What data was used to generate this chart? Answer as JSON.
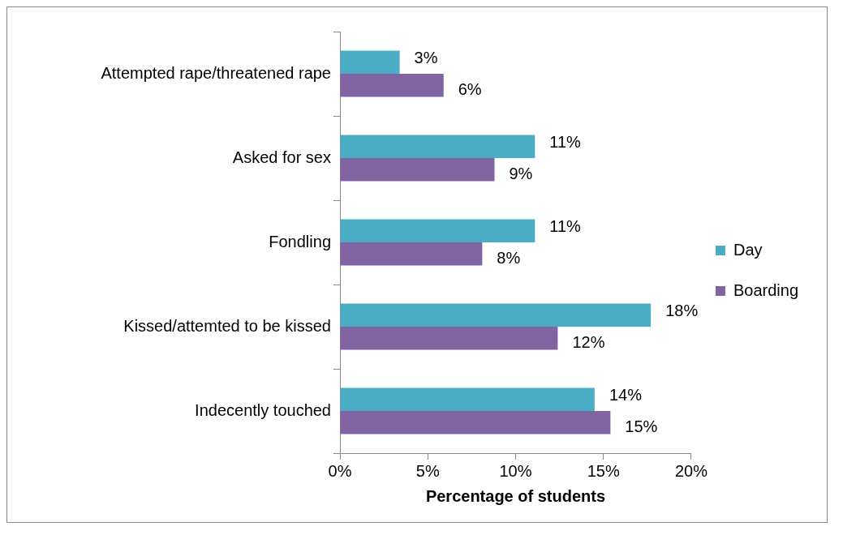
{
  "chart_data": {
    "type": "bar",
    "orientation": "horizontal",
    "xlabel": "Percentage of students",
    "categories": [
      "Attempted rape/threatened rape",
      "Asked for sex",
      "Fondling",
      "Kissed/attemted to be kissed",
      "Indecently touched"
    ],
    "series": [
      {
        "name": "Day",
        "color": "#4bacc6",
        "values": [
          3.4,
          11.1,
          11.1,
          17.7,
          14.5
        ],
        "value_labels": [
          "3%",
          "11%",
          "11%",
          "18%",
          "14%"
        ]
      },
      {
        "name": "Boarding",
        "color": "#8064a2",
        "values": [
          5.9,
          8.8,
          8.1,
          12.4,
          15.4
        ],
        "value_labels": [
          "6%",
          "9%",
          "8%",
          "12%",
          "15%"
        ]
      }
    ],
    "xlim": [
      0,
      20
    ],
    "xticks": [
      {
        "value": 0,
        "label": "0%"
      },
      {
        "value": 5,
        "label": "5%"
      },
      {
        "value": 10,
        "label": "10%"
      },
      {
        "value": 15,
        "label": "15%"
      },
      {
        "value": 20,
        "label": "20%"
      }
    ],
    "grid": false,
    "legend": "right"
  }
}
